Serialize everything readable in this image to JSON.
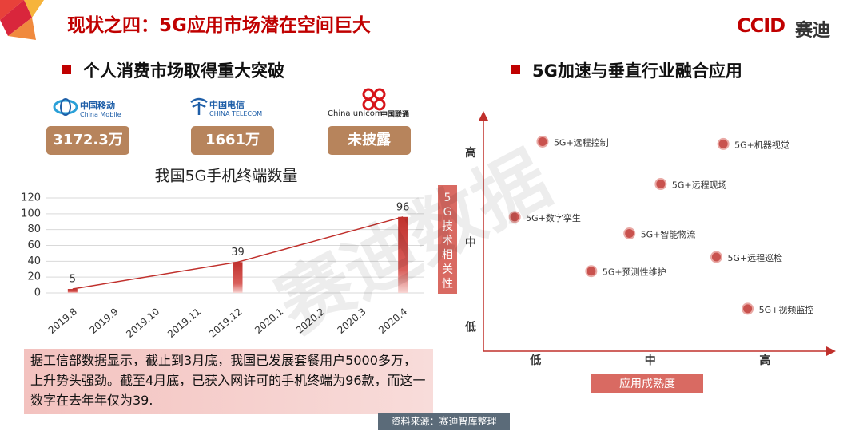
{
  "header": {
    "title": "现状之四：5G应用市场潜在空间巨大",
    "logo": "CCID",
    "logo_text": "赛迪"
  },
  "left": {
    "heading": "个人消费市场取得重大突破",
    "carriers": [
      {
        "name": "中国移动",
        "name_en": "China Mobile",
        "stat": "3172.3万"
      },
      {
        "name": "中国电信",
        "name_en": "CHINA TELECOM",
        "stat": "1661万"
      },
      {
        "name": "中国联通",
        "name_en": "China unicom",
        "stat": "未披露"
      }
    ],
    "note": "据工信部数据显示，截止到3月底，我国已发展套餐用户5000多万，上升势头强劲。截至4月底，已获入网许可的手机终端为96款，而这一数字在去年年仅为39."
  },
  "right": {
    "heading": "5G加速与垂直行业融合应用"
  },
  "source": "资料来源：赛迪智库整理",
  "watermark": "赛迪数据",
  "chart_data": [
    {
      "type": "bar",
      "title": "我国5G手机终端数量",
      "categories": [
        "2019.8",
        "2019.9",
        "2019.10",
        "2019.11",
        "2019.12",
        "2020.1",
        "2020.2",
        "2020.3",
        "2020.4"
      ],
      "values": [
        5,
        null,
        null,
        null,
        39,
        null,
        null,
        null,
        96
      ],
      "color": "#c0302c",
      "trendline": true,
      "ylim": [
        0,
        120
      ],
      "yticks": [
        0,
        20,
        40,
        60,
        80,
        100,
        120
      ],
      "grid": true
    },
    {
      "type": "scatter",
      "x_label": "应用成熟度",
      "y_label": "5G技术相关性",
      "labels": [
        "5G+远程控制",
        "5G+机器视觉",
        "5G+远程现场",
        "5G+数字孪生",
        "5G+智能物流",
        "5G+远程巡检",
        "5G+预测性维护",
        "5G+视频监控"
      ],
      "x": [
        1.7,
        6.9,
        5.1,
        0.9,
        4.2,
        6.7,
        3.1,
        7.6
      ],
      "values": [
        8.9,
        8.8,
        7.1,
        5.7,
        5.0,
        4.0,
        3.4,
        1.8
      ],
      "color": "#c9524e",
      "xlim": [
        0,
        10
      ],
      "ylim": [
        0,
        10
      ],
      "xticks": [
        {
          "value": 1.5,
          "label": "低"
        },
        {
          "value": 4.8,
          "label": "中"
        },
        {
          "value": 8.1,
          "label": "高"
        }
      ],
      "yticks": [
        {
          "value": 1.0,
          "label": "低"
        },
        {
          "value": 4.6,
          "label": "中"
        },
        {
          "value": 8.4,
          "label": "高"
        }
      ]
    }
  ]
}
